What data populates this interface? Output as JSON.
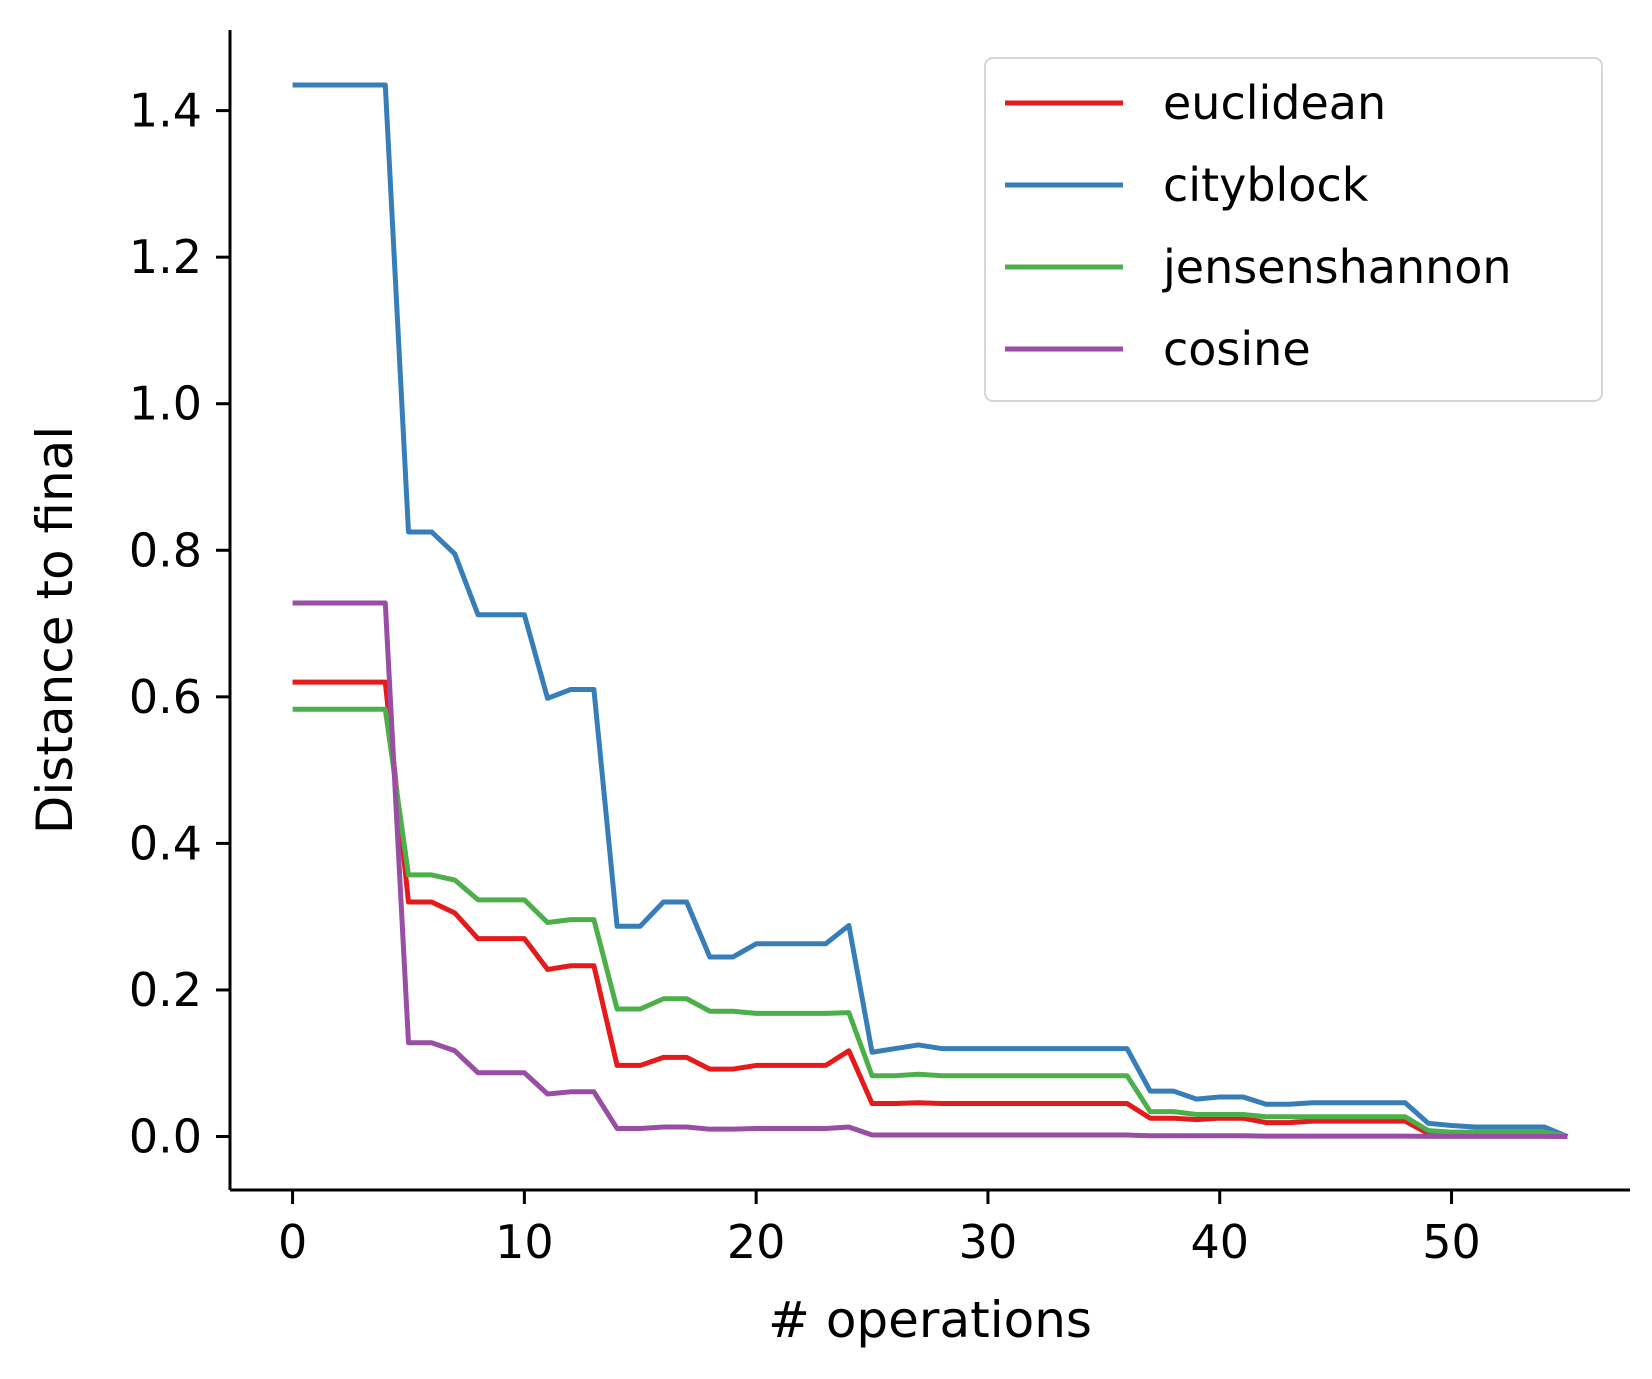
{
  "chart_data": {
    "type": "line",
    "title": "",
    "xlabel": "# operations",
    "ylabel": "Distance to final",
    "xlim": [
      -2.7,
      57.7
    ],
    "ylim": [
      -0.073,
      1.51
    ],
    "xticks": [
      0,
      10,
      20,
      30,
      40,
      50
    ],
    "yticks": [
      0.0,
      0.2,
      0.4,
      0.6,
      0.8,
      1.0,
      1.2,
      1.4
    ],
    "xtick_labels": [
      "0",
      "10",
      "20",
      "30",
      "40",
      "50"
    ],
    "ytick_labels": [
      "0.0",
      "0.2",
      "0.4",
      "0.6",
      "0.8",
      "1.0",
      "1.2",
      "1.4"
    ],
    "grid": false,
    "legend_position": "top-right",
    "x": [
      0,
      1,
      2,
      3,
      4,
      5,
      6,
      7,
      8,
      9,
      10,
      11,
      12,
      13,
      14,
      15,
      16,
      17,
      18,
      19,
      20,
      21,
      22,
      23,
      24,
      25,
      26,
      27,
      28,
      29,
      30,
      31,
      32,
      33,
      34,
      35,
      36,
      37,
      38,
      39,
      40,
      41,
      42,
      43,
      44,
      45,
      46,
      47,
      48,
      49,
      50,
      51,
      52,
      53,
      54,
      55
    ],
    "series": [
      {
        "name": "euclidean",
        "color": "#e41a1c",
        "values": [
          0.62,
          0.62,
          0.62,
          0.62,
          0.62,
          0.32,
          0.32,
          0.305,
          0.27,
          0.27,
          0.27,
          0.228,
          0.233,
          0.233,
          0.097,
          0.097,
          0.108,
          0.108,
          0.092,
          0.092,
          0.097,
          0.097,
          0.097,
          0.097,
          0.117,
          0.045,
          0.045,
          0.046,
          0.045,
          0.045,
          0.045,
          0.045,
          0.045,
          0.045,
          0.045,
          0.045,
          0.045,
          0.025,
          0.025,
          0.023,
          0.025,
          0.025,
          0.019,
          0.019,
          0.021,
          0.021,
          0.021,
          0.021,
          0.021,
          0.004,
          0.003,
          0.003,
          0.003,
          0.003,
          0.003,
          0.0
        ]
      },
      {
        "name": "cityblock",
        "color": "#377eb8",
        "values": [
          1.435,
          1.435,
          1.435,
          1.435,
          1.435,
          0.825,
          0.825,
          0.795,
          0.712,
          0.712,
          0.712,
          0.598,
          0.61,
          0.61,
          0.287,
          0.287,
          0.32,
          0.32,
          0.245,
          0.245,
          0.263,
          0.263,
          0.263,
          0.263,
          0.288,
          0.115,
          0.12,
          0.125,
          0.12,
          0.12,
          0.12,
          0.12,
          0.12,
          0.12,
          0.12,
          0.12,
          0.12,
          0.062,
          0.062,
          0.051,
          0.054,
          0.054,
          0.044,
          0.044,
          0.046,
          0.046,
          0.046,
          0.046,
          0.046,
          0.018,
          0.015,
          0.013,
          0.013,
          0.013,
          0.013,
          0.0
        ]
      },
      {
        "name": "jensenshannon",
        "color": "#4daf4a",
        "values": [
          0.583,
          0.583,
          0.583,
          0.583,
          0.583,
          0.357,
          0.357,
          0.35,
          0.323,
          0.323,
          0.323,
          0.292,
          0.296,
          0.296,
          0.174,
          0.174,
          0.188,
          0.188,
          0.171,
          0.171,
          0.168,
          0.168,
          0.168,
          0.168,
          0.169,
          0.083,
          0.083,
          0.085,
          0.083,
          0.083,
          0.083,
          0.083,
          0.083,
          0.083,
          0.083,
          0.083,
          0.083,
          0.034,
          0.034,
          0.03,
          0.03,
          0.03,
          0.027,
          0.027,
          0.027,
          0.027,
          0.027,
          0.027,
          0.027,
          0.008,
          0.006,
          0.006,
          0.006,
          0.006,
          0.006,
          0.0
        ]
      },
      {
        "name": "cosine",
        "color": "#984ea3",
        "values": [
          0.728,
          0.728,
          0.728,
          0.728,
          0.728,
          0.128,
          0.128,
          0.117,
          0.087,
          0.087,
          0.087,
          0.058,
          0.061,
          0.061,
          0.011,
          0.011,
          0.013,
          0.013,
          0.01,
          0.01,
          0.011,
          0.011,
          0.011,
          0.011,
          0.013,
          0.002,
          0.002,
          0.002,
          0.002,
          0.002,
          0.002,
          0.002,
          0.002,
          0.002,
          0.002,
          0.002,
          0.002,
          0.001,
          0.001,
          0.001,
          0.001,
          0.001,
          0.0005,
          0.0005,
          0.0005,
          0.0005,
          0.0005,
          0.0005,
          0.0005,
          0.0002,
          0.0001,
          0.0001,
          0.0001,
          0.0001,
          0.0001,
          0.0
        ]
      }
    ]
  }
}
